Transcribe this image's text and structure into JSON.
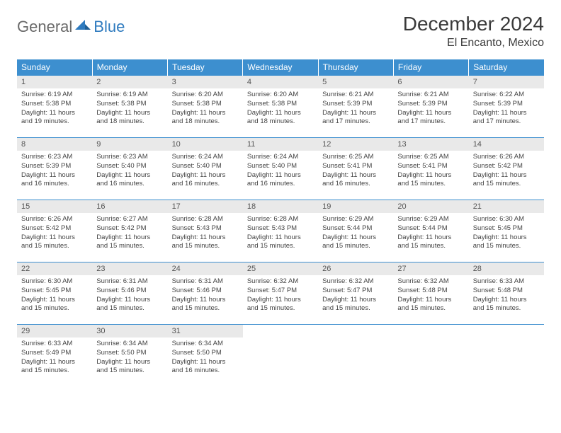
{
  "logo": {
    "part1": "General",
    "part2": "Blue"
  },
  "title": "December 2024",
  "location": "El Encanto, Mexico",
  "colors": {
    "header_bg": "#3d8fcf",
    "header_text": "#ffffff",
    "daynum_bg": "#e9e9e9",
    "rule": "#3d8fcf",
    "logo_gray": "#6a6a6a",
    "logo_blue": "#2f7bbf"
  },
  "weekdays": [
    "Sunday",
    "Monday",
    "Tuesday",
    "Wednesday",
    "Thursday",
    "Friday",
    "Saturday"
  ],
  "weeks": [
    [
      {
        "n": "1",
        "sr": "6:19 AM",
        "ss": "5:38 PM",
        "dl": "11 hours and 19 minutes."
      },
      {
        "n": "2",
        "sr": "6:19 AM",
        "ss": "5:38 PM",
        "dl": "11 hours and 18 minutes."
      },
      {
        "n": "3",
        "sr": "6:20 AM",
        "ss": "5:38 PM",
        "dl": "11 hours and 18 minutes."
      },
      {
        "n": "4",
        "sr": "6:20 AM",
        "ss": "5:38 PM",
        "dl": "11 hours and 18 minutes."
      },
      {
        "n": "5",
        "sr": "6:21 AM",
        "ss": "5:39 PM",
        "dl": "11 hours and 17 minutes."
      },
      {
        "n": "6",
        "sr": "6:21 AM",
        "ss": "5:39 PM",
        "dl": "11 hours and 17 minutes."
      },
      {
        "n": "7",
        "sr": "6:22 AM",
        "ss": "5:39 PM",
        "dl": "11 hours and 17 minutes."
      }
    ],
    [
      {
        "n": "8",
        "sr": "6:23 AM",
        "ss": "5:39 PM",
        "dl": "11 hours and 16 minutes."
      },
      {
        "n": "9",
        "sr": "6:23 AM",
        "ss": "5:40 PM",
        "dl": "11 hours and 16 minutes."
      },
      {
        "n": "10",
        "sr": "6:24 AM",
        "ss": "5:40 PM",
        "dl": "11 hours and 16 minutes."
      },
      {
        "n": "11",
        "sr": "6:24 AM",
        "ss": "5:40 PM",
        "dl": "11 hours and 16 minutes."
      },
      {
        "n": "12",
        "sr": "6:25 AM",
        "ss": "5:41 PM",
        "dl": "11 hours and 16 minutes."
      },
      {
        "n": "13",
        "sr": "6:25 AM",
        "ss": "5:41 PM",
        "dl": "11 hours and 15 minutes."
      },
      {
        "n": "14",
        "sr": "6:26 AM",
        "ss": "5:42 PM",
        "dl": "11 hours and 15 minutes."
      }
    ],
    [
      {
        "n": "15",
        "sr": "6:26 AM",
        "ss": "5:42 PM",
        "dl": "11 hours and 15 minutes."
      },
      {
        "n": "16",
        "sr": "6:27 AM",
        "ss": "5:42 PM",
        "dl": "11 hours and 15 minutes."
      },
      {
        "n": "17",
        "sr": "6:28 AM",
        "ss": "5:43 PM",
        "dl": "11 hours and 15 minutes."
      },
      {
        "n": "18",
        "sr": "6:28 AM",
        "ss": "5:43 PM",
        "dl": "11 hours and 15 minutes."
      },
      {
        "n": "19",
        "sr": "6:29 AM",
        "ss": "5:44 PM",
        "dl": "11 hours and 15 minutes."
      },
      {
        "n": "20",
        "sr": "6:29 AM",
        "ss": "5:44 PM",
        "dl": "11 hours and 15 minutes."
      },
      {
        "n": "21",
        "sr": "6:30 AM",
        "ss": "5:45 PM",
        "dl": "11 hours and 15 minutes."
      }
    ],
    [
      {
        "n": "22",
        "sr": "6:30 AM",
        "ss": "5:45 PM",
        "dl": "11 hours and 15 minutes."
      },
      {
        "n": "23",
        "sr": "6:31 AM",
        "ss": "5:46 PM",
        "dl": "11 hours and 15 minutes."
      },
      {
        "n": "24",
        "sr": "6:31 AM",
        "ss": "5:46 PM",
        "dl": "11 hours and 15 minutes."
      },
      {
        "n": "25",
        "sr": "6:32 AM",
        "ss": "5:47 PM",
        "dl": "11 hours and 15 minutes."
      },
      {
        "n": "26",
        "sr": "6:32 AM",
        "ss": "5:47 PM",
        "dl": "11 hours and 15 minutes."
      },
      {
        "n": "27",
        "sr": "6:32 AM",
        "ss": "5:48 PM",
        "dl": "11 hours and 15 minutes."
      },
      {
        "n": "28",
        "sr": "6:33 AM",
        "ss": "5:48 PM",
        "dl": "11 hours and 15 minutes."
      }
    ],
    [
      {
        "n": "29",
        "sr": "6:33 AM",
        "ss": "5:49 PM",
        "dl": "11 hours and 15 minutes."
      },
      {
        "n": "30",
        "sr": "6:34 AM",
        "ss": "5:50 PM",
        "dl": "11 hours and 15 minutes."
      },
      {
        "n": "31",
        "sr": "6:34 AM",
        "ss": "5:50 PM",
        "dl": "11 hours and 16 minutes."
      },
      null,
      null,
      null,
      null
    ]
  ],
  "labels": {
    "sunrise": "Sunrise:",
    "sunset": "Sunset:",
    "daylight": "Daylight:"
  }
}
